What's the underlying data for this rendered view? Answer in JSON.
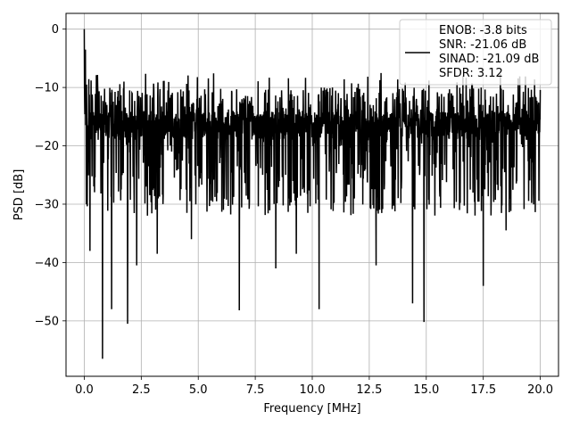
{
  "chart_data": {
    "type": "line",
    "title": "",
    "xlabel": "Frequency [MHz]",
    "ylabel": "PSD [dB]",
    "xlim": [
      -0.8,
      20.8
    ],
    "ylim": [
      -59.5,
      2.7
    ],
    "xticks": [
      0.0,
      2.5,
      5.0,
      7.5,
      10.0,
      12.5,
      15.0,
      17.5,
      20.0
    ],
    "xtick_labels": [
      "0.0",
      "2.5",
      "5.0",
      "7.5",
      "10.0",
      "12.5",
      "15.0",
      "17.5",
      "20.0"
    ],
    "yticks": [
      0,
      -10,
      -20,
      -30,
      -40,
      -50
    ],
    "ytick_labels": [
      "0",
      "−10",
      "−20",
      "−30",
      "−40",
      "−50"
    ],
    "grid": true,
    "legend_position": "top-right",
    "series": [
      {
        "name": "ENOB: -3.8 bits\nSNR: -21.06 dB\nSINAD: -21.09 dB\nSFDR: 3.12",
        "color": "#000000",
        "x_range": [
          0,
          20
        ],
        "points": 2000,
        "peaks": [
          {
            "x": 0.0,
            "y": 0.0
          },
          {
            "x": 0.05,
            "y": -3.5
          },
          {
            "x": 0.1,
            "y": -9.5
          },
          {
            "x": 0.15,
            "y": -17.5
          }
        ],
        "dips": [
          {
            "x": 0.25,
            "y": -38.0
          },
          {
            "x": 0.8,
            "y": -56.5
          },
          {
            "x": 1.2,
            "y": -48.0
          },
          {
            "x": 1.9,
            "y": -50.5
          },
          {
            "x": 2.3,
            "y": -40.5
          },
          {
            "x": 3.2,
            "y": -38.5
          },
          {
            "x": 4.7,
            "y": -36.0
          },
          {
            "x": 6.8,
            "y": -48.2
          },
          {
            "x": 8.4,
            "y": -41.0
          },
          {
            "x": 9.3,
            "y": -38.5
          },
          {
            "x": 10.3,
            "y": -48.0
          },
          {
            "x": 11.4,
            "y": -53.5
          },
          {
            "x": 12.8,
            "y": -40.5
          },
          {
            "x": 14.4,
            "y": -47.0
          },
          {
            "x": 14.9,
            "y": -50.2
          },
          {
            "x": 17.5,
            "y": -44.0
          },
          {
            "x": 18.5,
            "y": -34.5
          }
        ],
        "typical_upper": -10.0,
        "typical_lower": -32.0,
        "typical_center": -18.0
      }
    ]
  }
}
